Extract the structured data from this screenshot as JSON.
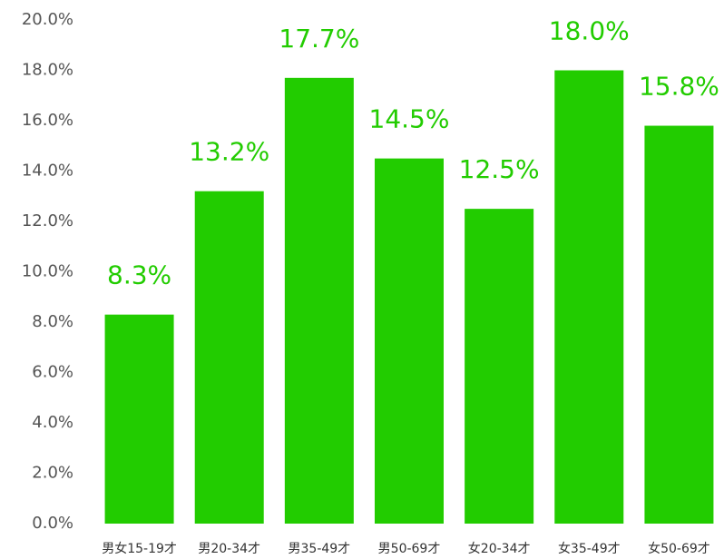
{
  "chart_data": {
    "type": "bar",
    "categories": [
      "男女15-19才",
      "男20-34才",
      "男35-49才",
      "男50-69才",
      "女20-34才",
      "女35-49才",
      "女50-69才"
    ],
    "values": [
      8.3,
      13.2,
      17.7,
      14.5,
      12.5,
      18.0,
      15.8
    ],
    "value_labels": [
      "8.3%",
      "13.2%",
      "17.7%",
      "14.5%",
      "12.5%",
      "18.0%",
      "15.8%"
    ],
    "color": "#22cc00",
    "ylim": [
      0,
      20
    ],
    "yticks": [
      {
        "value": 0,
        "label": "0.0%"
      },
      {
        "value": 2,
        "label": "2.0%"
      },
      {
        "value": 4,
        "label": "4.0%"
      },
      {
        "value": 6,
        "label": "6.0%"
      },
      {
        "value": 8,
        "label": "8.0%"
      },
      {
        "value": 10,
        "label": "10.0%"
      },
      {
        "value": 12,
        "label": "12.0%"
      },
      {
        "value": 14,
        "label": "14.0%"
      },
      {
        "value": 16,
        "label": "16.0%"
      },
      {
        "value": 18,
        "label": "18.0%"
      },
      {
        "value": 20,
        "label": "20.0%"
      }
    ],
    "grid": false
  }
}
